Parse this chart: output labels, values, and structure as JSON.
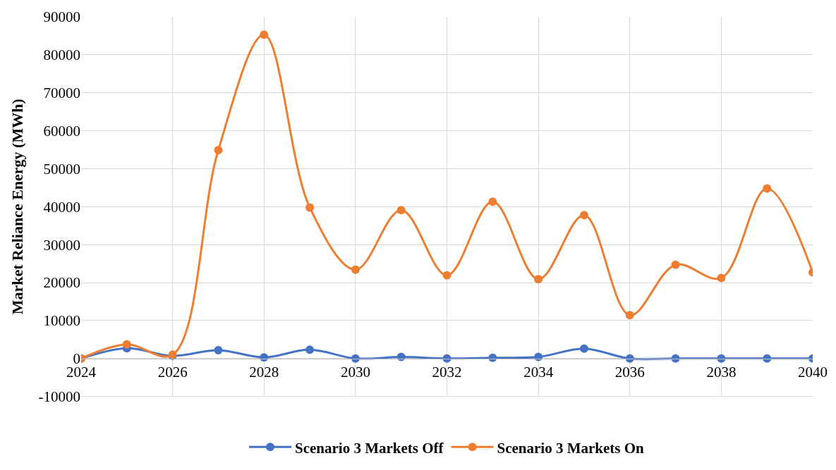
{
  "chart_data": {
    "type": "line",
    "ylabel": "Market Reliance Energy (MWh)",
    "x": [
      2024,
      2025,
      2026,
      2027,
      2028,
      2029,
      2030,
      2031,
      2032,
      2033,
      2034,
      2035,
      2036,
      2037,
      2038,
      2039,
      2040
    ],
    "series": [
      {
        "name": "Scenario 3 Markets Off",
        "color": "#4472c4",
        "values": [
          0,
          2700,
          700,
          2200,
          300,
          2300,
          0,
          400,
          0,
          200,
          400,
          2600,
          0,
          0,
          0,
          0,
          0
        ]
      },
      {
        "name": "Scenario 3 Markets On",
        "color": "#ed7d31",
        "values": [
          0,
          3700,
          1000,
          54900,
          85300,
          39800,
          23400,
          39100,
          21900,
          41300,
          20900,
          37800,
          11400,
          24700,
          21200,
          44800,
          22700
        ]
      }
    ],
    "xlim": [
      2024,
      2040
    ],
    "xticks": [
      2024,
      2026,
      2028,
      2030,
      2032,
      2034,
      2036,
      2038,
      2040
    ],
    "ylim": [
      -10000,
      90000
    ],
    "yticks": [
      -10000,
      0,
      10000,
      20000,
      30000,
      40000,
      50000,
      60000,
      70000,
      80000,
      90000
    ],
    "grid": true,
    "legend": "bottom",
    "marker": "circle",
    "line_style": "solid"
  }
}
